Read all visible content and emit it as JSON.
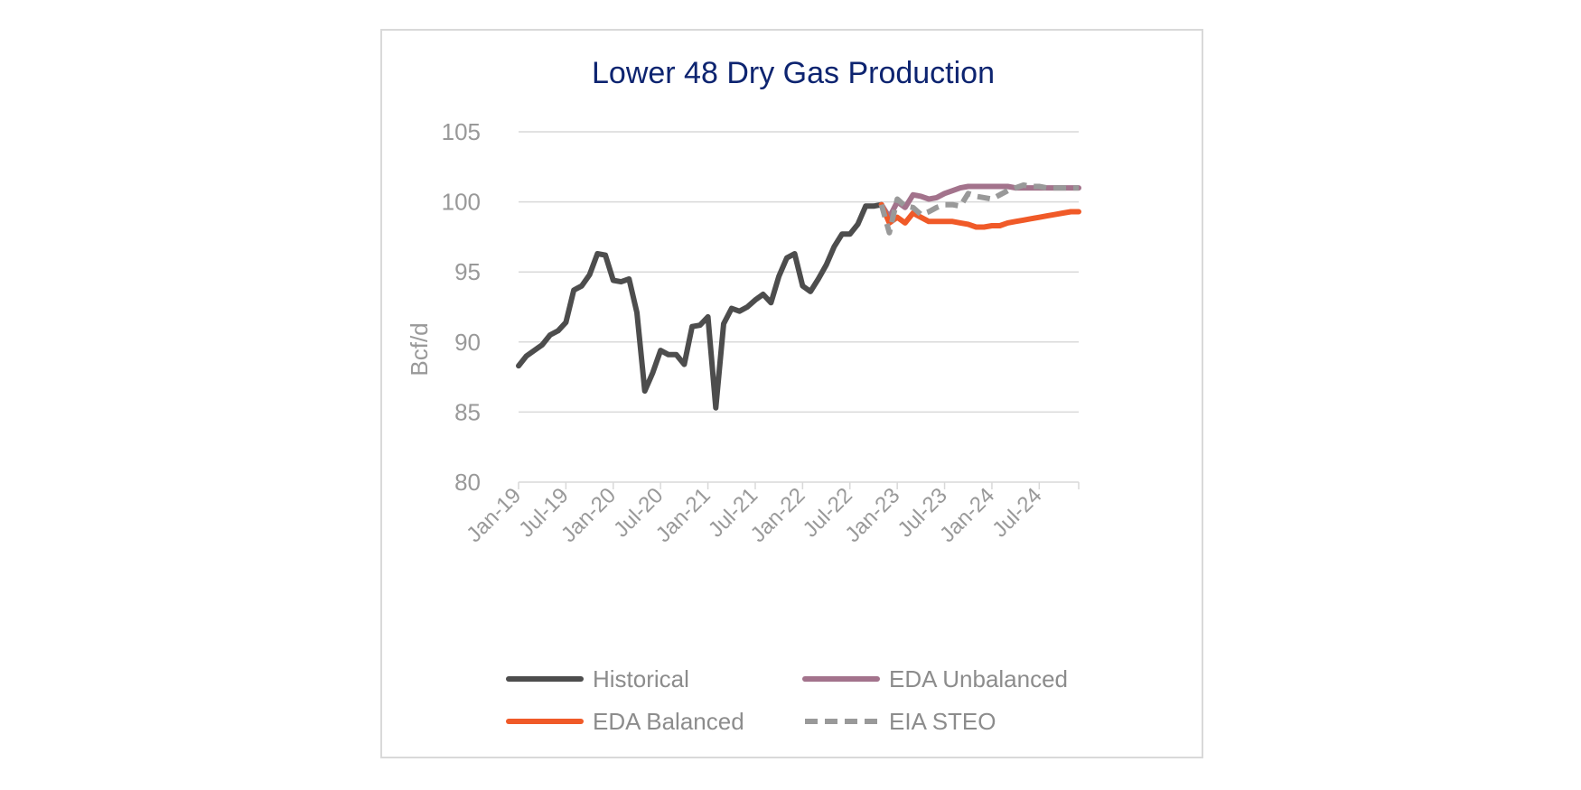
{
  "chart_data": {
    "type": "line",
    "title": "Lower 48 Dry Gas Production",
    "xlabel": "",
    "ylabel": "Bcf/d",
    "ylim": [
      80,
      105
    ],
    "yticks": [
      80,
      85,
      90,
      95,
      100,
      105
    ],
    "x_start": "Jan-19",
    "x_end": "Dec-24",
    "xtick_labels": [
      "Jan-19",
      "Jul-19",
      "Jan-20",
      "Jul-20",
      "Jan-21",
      "Jul-21",
      "Jan-22",
      "Jul-22",
      "Jan-23",
      "Jul-23",
      "Jan-24",
      "Jul-24"
    ],
    "grid": true,
    "legend_position": "bottom",
    "series": [
      {
        "name": "Historical",
        "color": "#4d4d4d",
        "dash": false,
        "x": [
          "Jan-19",
          "Feb-19",
          "Mar-19",
          "Apr-19",
          "May-19",
          "Jun-19",
          "Jul-19",
          "Aug-19",
          "Sep-19",
          "Oct-19",
          "Nov-19",
          "Dec-19",
          "Jan-20",
          "Feb-20",
          "Mar-20",
          "Apr-20",
          "May-20",
          "Jun-20",
          "Jul-20",
          "Aug-20",
          "Sep-20",
          "Oct-20",
          "Nov-20",
          "Dec-20",
          "Jan-21",
          "Feb-21",
          "Mar-21",
          "Apr-21",
          "May-21",
          "Jun-21",
          "Jul-21",
          "Aug-21",
          "Sep-21",
          "Oct-21",
          "Nov-21",
          "Dec-21",
          "Jan-22",
          "Feb-22",
          "Mar-22",
          "Apr-22",
          "May-22",
          "Jun-22",
          "Jul-22",
          "Aug-22",
          "Sep-22",
          "Oct-22",
          "Nov-22"
        ],
        "values": [
          88.3,
          89.0,
          89.4,
          89.8,
          90.5,
          90.8,
          91.4,
          93.7,
          94.0,
          94.8,
          96.3,
          96.2,
          94.4,
          94.3,
          94.5,
          92.1,
          86.5,
          87.8,
          89.4,
          89.1,
          89.1,
          88.4,
          91.1,
          91.2,
          91.8,
          85.3,
          91.3,
          92.4,
          92.2,
          92.5,
          93.0,
          93.4,
          92.8,
          94.7,
          96.0,
          96.3,
          94.0,
          93.6,
          94.5,
          95.5,
          96.8,
          97.7,
          97.7,
          98.4,
          99.7,
          99.7,
          99.8
        ]
      },
      {
        "name": "EDA Unbalanced",
        "color": "#a3738c",
        "dash": false,
        "x": [
          "Nov-22",
          "Dec-22",
          "Jan-23",
          "Feb-23",
          "Mar-23",
          "Apr-23",
          "May-23",
          "Jun-23",
          "Jul-23",
          "Aug-23",
          "Sep-23",
          "Oct-23",
          "Nov-23",
          "Dec-23",
          "Jan-24",
          "Feb-24",
          "Mar-24",
          "Apr-24",
          "May-24",
          "Jun-24",
          "Jul-24",
          "Aug-24",
          "Sep-24",
          "Oct-24",
          "Nov-24",
          "Dec-24"
        ],
        "values": [
          99.8,
          98.9,
          100.0,
          99.6,
          100.5,
          100.4,
          100.2,
          100.3,
          100.6,
          100.8,
          101.0,
          101.1,
          101.1,
          101.1,
          101.1,
          101.1,
          101.1,
          101.0,
          101.0,
          101.0,
          101.0,
          101.0,
          101.0,
          101.0,
          101.0,
          101.0
        ]
      },
      {
        "name": "EDA Balanced",
        "color": "#f05a28",
        "dash": false,
        "x": [
          "Nov-22",
          "Dec-22",
          "Jan-23",
          "Feb-23",
          "Mar-23",
          "Apr-23",
          "May-23",
          "Jun-23",
          "Jul-23",
          "Aug-23",
          "Sep-23",
          "Oct-23",
          "Nov-23",
          "Dec-23",
          "Jan-24",
          "Feb-24",
          "Mar-24",
          "Apr-24",
          "May-24",
          "Jun-24",
          "Jul-24",
          "Aug-24",
          "Sep-24",
          "Oct-24",
          "Nov-24",
          "Dec-24"
        ],
        "values": [
          99.8,
          98.5,
          98.9,
          98.5,
          99.2,
          98.9,
          98.6,
          98.6,
          98.6,
          98.6,
          98.5,
          98.4,
          98.2,
          98.2,
          98.3,
          98.3,
          98.5,
          98.6,
          98.7,
          98.8,
          98.9,
          99.0,
          99.1,
          99.2,
          99.3,
          99.3
        ]
      },
      {
        "name": "EIA STEO",
        "color": "#999999",
        "dash": true,
        "x": [
          "Nov-22",
          "Dec-22",
          "Jan-23",
          "Feb-23",
          "Mar-23",
          "Apr-23",
          "May-23",
          "Jun-23",
          "Jul-23",
          "Aug-23",
          "Sep-23",
          "Oct-23",
          "Nov-23",
          "Dec-23",
          "Jan-24",
          "Feb-24",
          "Mar-24",
          "Apr-24",
          "May-24",
          "Jun-24",
          "Jul-24",
          "Aug-24",
          "Sep-24",
          "Oct-24",
          "Nov-24",
          "Dec-24"
        ],
        "values": [
          99.8,
          97.8,
          100.2,
          99.7,
          99.6,
          99.1,
          99.3,
          99.6,
          99.8,
          99.8,
          99.7,
          100.6,
          100.4,
          100.3,
          100.2,
          100.5,
          100.8,
          101.0,
          101.2,
          101.1,
          101.1,
          101.0,
          101.0,
          101.0,
          101.0,
          101.0
        ]
      }
    ]
  }
}
